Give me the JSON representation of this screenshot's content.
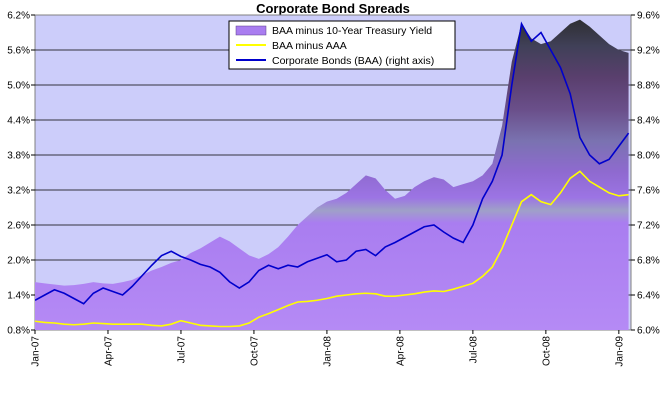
{
  "chart_data": {
    "type": "line",
    "title": "Corporate Bond Spreads",
    "x_tick_labels": [
      "Jan-07",
      "Apr-07",
      "Jul-07",
      "Oct-07",
      "Jan-08",
      "Apr-08",
      "Jul-08",
      "Oct-08",
      "Jan-09"
    ],
    "x_range": [
      "Jan-07",
      "Jan-09 + 2w"
    ],
    "left_axis": {
      "ylim": [
        0.8,
        6.2
      ],
      "ticks": [
        "0.8%",
        "1.4%",
        "2.0%",
        "2.6%",
        "3.2%",
        "3.8%",
        "4.4%",
        "5.0%",
        "5.6%",
        "6.2%"
      ]
    },
    "right_axis": {
      "ylim": [
        6.0,
        9.6
      ],
      "ticks": [
        "6.0%",
        "6.4%",
        "6.8%",
        "7.2%",
        "7.6%",
        "8.0%",
        "8.4%",
        "8.8%",
        "9.2%",
        "9.6%"
      ]
    },
    "grid": "horizontal",
    "legend_position": "top-center",
    "series": [
      {
        "name": "BAA minus 10-Year Treasury Yield",
        "style": "area",
        "axis": "left",
        "color": "#a97df0",
        "x": [
          0,
          0.4,
          0.8,
          1.2,
          1.6,
          2.0,
          2.4,
          2.8,
          3.2,
          3.6,
          4.0,
          4.4,
          4.8,
          5.2,
          5.6,
          6.0,
          6.4,
          6.8,
          7.2,
          7.6,
          8.0,
          8.4,
          8.8,
          9.2,
          9.6,
          10.0,
          10.4,
          10.8,
          11.2,
          11.6,
          12.0,
          12.4,
          12.8,
          13.2,
          13.6,
          14.0,
          14.4,
          14.8,
          15.2,
          15.6,
          16.0,
          16.4,
          16.8,
          17.2,
          17.6,
          18.0,
          18.4,
          18.8,
          19.2,
          19.6,
          20.0,
          20.4,
          20.8,
          21.2,
          21.6,
          22.0,
          22.4,
          22.8,
          23.2,
          23.6,
          24.0,
          24.4
        ],
        "y": [
          1.62,
          1.6,
          1.58,
          1.56,
          1.57,
          1.59,
          1.62,
          1.6,
          1.59,
          1.62,
          1.66,
          1.74,
          1.82,
          1.88,
          1.95,
          2.0,
          2.12,
          2.2,
          2.3,
          2.4,
          2.32,
          2.2,
          2.08,
          2.02,
          2.1,
          2.22,
          2.4,
          2.6,
          2.75,
          2.9,
          3.0,
          3.05,
          3.15,
          3.3,
          3.45,
          3.4,
          3.2,
          3.05,
          3.1,
          3.25,
          3.35,
          3.42,
          3.38,
          3.25,
          3.3,
          3.35,
          3.45,
          3.65,
          4.3,
          5.4,
          6.05,
          5.8,
          5.7,
          5.75,
          5.9,
          6.05,
          6.12,
          6.0,
          5.85,
          5.7,
          5.6,
          5.55
        ]
      },
      {
        "name": "BAA minus AAA",
        "style": "line",
        "axis": "left",
        "color": "#ffff00",
        "x": [
          0,
          0.4,
          0.8,
          1.2,
          1.6,
          2.0,
          2.4,
          2.8,
          3.2,
          3.6,
          4.0,
          4.4,
          4.8,
          5.2,
          5.6,
          6.0,
          6.4,
          6.8,
          7.2,
          7.6,
          8.0,
          8.4,
          8.8,
          9.2,
          9.6,
          10.0,
          10.4,
          10.8,
          11.2,
          11.6,
          12.0,
          12.4,
          12.8,
          13.2,
          13.6,
          14.0,
          14.4,
          14.8,
          15.2,
          15.6,
          16.0,
          16.4,
          16.8,
          17.2,
          17.6,
          18.0,
          18.4,
          18.8,
          19.2,
          19.6,
          20.0,
          20.4,
          20.8,
          21.2,
          21.6,
          22.0,
          22.4,
          22.8,
          23.2,
          23.6,
          24.0,
          24.4
        ],
        "y": [
          0.95,
          0.93,
          0.92,
          0.9,
          0.89,
          0.9,
          0.92,
          0.91,
          0.9,
          0.9,
          0.9,
          0.9,
          0.88,
          0.87,
          0.9,
          0.96,
          0.92,
          0.88,
          0.87,
          0.86,
          0.86,
          0.87,
          0.92,
          1.02,
          1.08,
          1.15,
          1.22,
          1.28,
          1.29,
          1.31,
          1.34,
          1.38,
          1.4,
          1.42,
          1.43,
          1.42,
          1.38,
          1.38,
          1.4,
          1.42,
          1.45,
          1.47,
          1.46,
          1.5,
          1.55,
          1.6,
          1.72,
          1.88,
          2.2,
          2.6,
          3.0,
          3.12,
          3.0,
          2.95,
          3.15,
          3.4,
          3.52,
          3.35,
          3.25,
          3.15,
          3.1,
          3.12
        ]
      },
      {
        "name": "Corporate Bonds (BAA) (right axis)",
        "style": "line",
        "axis": "right",
        "color": "#0000cc",
        "x": [
          0,
          0.4,
          0.8,
          1.2,
          1.6,
          2.0,
          2.4,
          2.8,
          3.2,
          3.6,
          4.0,
          4.4,
          4.8,
          5.2,
          5.6,
          6.0,
          6.4,
          6.8,
          7.2,
          7.6,
          8.0,
          8.4,
          8.8,
          9.2,
          9.6,
          10.0,
          10.4,
          10.8,
          11.2,
          11.6,
          12.0,
          12.4,
          12.8,
          13.2,
          13.6,
          14.0,
          14.4,
          14.8,
          15.2,
          15.6,
          16.0,
          16.4,
          16.8,
          17.2,
          17.6,
          18.0,
          18.4,
          18.8,
          19.2,
          19.6,
          20.0,
          20.4,
          20.8,
          21.2,
          21.6,
          22.0,
          22.4,
          22.8,
          23.2,
          23.6,
          24.0,
          24.4
        ],
        "y": [
          6.34,
          6.4,
          6.46,
          6.42,
          6.36,
          6.3,
          6.42,
          6.48,
          6.44,
          6.4,
          6.5,
          6.62,
          6.74,
          6.85,
          6.9,
          6.84,
          6.8,
          6.75,
          6.72,
          6.66,
          6.55,
          6.48,
          6.55,
          6.68,
          6.74,
          6.7,
          6.74,
          6.72,
          6.78,
          6.82,
          6.86,
          6.78,
          6.8,
          6.9,
          6.92,
          6.85,
          6.95,
          7.0,
          7.06,
          7.12,
          7.18,
          7.2,
          7.12,
          7.05,
          7.0,
          7.2,
          7.5,
          7.7,
          8.0,
          8.8,
          9.5,
          9.3,
          9.4,
          9.2,
          9.0,
          8.7,
          8.2,
          8.0,
          7.9,
          7.95,
          8.1,
          8.25
        ]
      }
    ]
  }
}
